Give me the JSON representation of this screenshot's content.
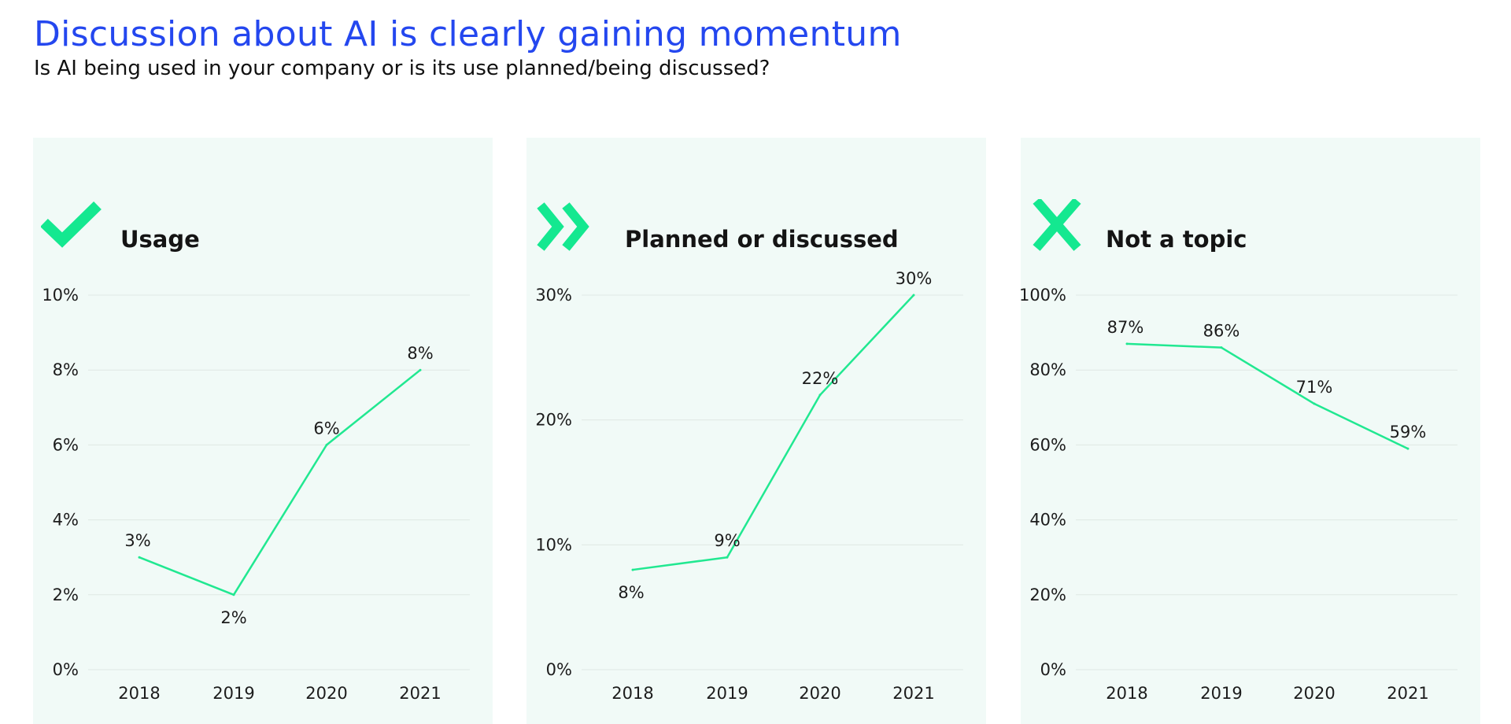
{
  "header": {
    "title": "Discussion about AI is clearly gaining momentum",
    "subtitle": "Is AI being used in your company or is its use planned/being discussed?"
  },
  "colors": {
    "title": "#2447ef",
    "line": "#21e891",
    "icon": "#14e890",
    "panel_bg": "#f1faf7",
    "grid": "#dfe8e4",
    "text": "#1c1c1c"
  },
  "panels": [
    {
      "title": "Usage",
      "icon": "checkmark-icon"
    },
    {
      "title": "Planned or discussed",
      "icon": "double-chevron-right-icon"
    },
    {
      "title": "Not a topic",
      "icon": "cross-icon"
    }
  ],
  "chart_data": [
    {
      "type": "line",
      "title": "Usage",
      "x": [
        "2018",
        "2019",
        "2020",
        "2021"
      ],
      "values": [
        3,
        2,
        6,
        8
      ],
      "data_labels": [
        "3%",
        "2%",
        "6%",
        "8%"
      ],
      "ylim": [
        0,
        10
      ],
      "yticks": [
        0,
        2,
        4,
        6,
        8,
        10
      ],
      "ytick_labels": [
        "0%",
        "2%",
        "4%",
        "6%",
        "8%",
        "10%"
      ],
      "grid": true
    },
    {
      "type": "line",
      "title": "Planned or discussed",
      "x": [
        "2018",
        "2019",
        "2020",
        "2021"
      ],
      "values": [
        8,
        9,
        22,
        30
      ],
      "data_labels": [
        "8%",
        "9%",
        "22%",
        "30%"
      ],
      "ylim": [
        0,
        30
      ],
      "yticks": [
        0,
        10,
        20,
        30
      ],
      "ytick_labels": [
        "0%",
        "10%",
        "20%",
        "30%"
      ],
      "grid": true
    },
    {
      "type": "line",
      "title": "Not a topic",
      "x": [
        "2018",
        "2019",
        "2020",
        "2021"
      ],
      "values": [
        87,
        86,
        71,
        59
      ],
      "data_labels": [
        "87%",
        "86%",
        "71%",
        "59%"
      ],
      "ylim": [
        0,
        100
      ],
      "yticks": [
        0,
        20,
        40,
        60,
        80,
        100
      ],
      "ytick_labels": [
        "0%",
        "20%",
        "40%",
        "60%",
        "80%",
        "100%"
      ],
      "grid": true
    }
  ]
}
